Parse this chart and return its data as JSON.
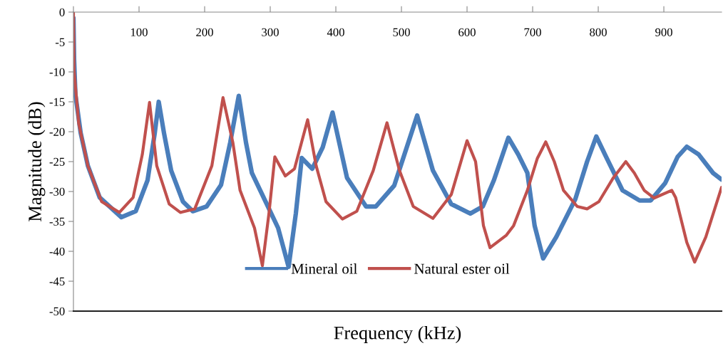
{
  "chart_data": {
    "type": "line",
    "xlabel": "Frequency (kHz)",
    "ylabel": "Magnitude (dB)",
    "xlim": [
      0,
      988
    ],
    "ylim": [
      -50,
      0
    ],
    "xticks": [
      {
        "value": 0,
        "label": null
      },
      100,
      200,
      300,
      400,
      500,
      600,
      700,
      800,
      900
    ],
    "yticks": [
      0,
      -5,
      -10,
      -15,
      -20,
      -25,
      -30,
      -35,
      -40,
      -45,
      -50
    ],
    "grid": false,
    "legend": "bottom",
    "line_style": "solid",
    "marker": "none",
    "series": [
      {
        "name": "Mineral oil",
        "color": "#4a7ebb",
        "x": [
          0,
          1,
          3,
          11,
          22,
          40,
          73,
          95,
          113,
          124,
          130,
          138,
          149,
          167,
          182,
          203,
          225,
          239,
          252,
          263,
          272,
          293,
          312,
          328,
          339,
          348,
          364,
          380,
          395,
          417,
          446,
          461,
          489,
          524,
          548,
          576,
          605,
          624,
          641,
          663,
          678,
          692,
          703,
          716,
          736,
          765,
          783,
          797,
          812,
          837,
          863,
          880,
          902,
          921,
          935,
          953,
          975,
          988
        ],
        "values": [
          -1,
          -7.9,
          -13.8,
          -20.2,
          -25.7,
          -31,
          -34.3,
          -33.3,
          -28.1,
          -20.2,
          -15,
          -20.2,
          -26.5,
          -31.7,
          -33.3,
          -32.5,
          -28.9,
          -21.8,
          -14,
          -21.8,
          -26.9,
          -31.7,
          -36.1,
          -42.6,
          -33.7,
          -24.4,
          -26.2,
          -22.6,
          -16.8,
          -27.7,
          -32.5,
          -32.5,
          -29,
          -17.3,
          -26.5,
          -32.1,
          -33.7,
          -32.5,
          -28.1,
          -21,
          -23.8,
          -26.9,
          -35.7,
          -41.2,
          -37.6,
          -31.3,
          -25,
          -20.8,
          -24.2,
          -29.8,
          -31.5,
          -31.5,
          -28.6,
          -24.2,
          -22.5,
          -23.8,
          -26.9,
          -28
        ]
      },
      {
        "name": "Natural ester oil",
        "color": "#c0504d",
        "x": [
          0,
          1,
          8,
          22,
          43,
          70,
          91,
          105,
          116,
          127,
          146,
          163,
          185,
          211,
          228,
          243,
          254,
          276,
          288,
          298,
          307,
          323,
          337,
          357,
          370,
          385,
          410,
          432,
          457,
          478,
          497,
          518,
          548,
          576,
          600,
          613,
          625,
          635,
          660,
          671,
          692,
          707,
          720,
          733,
          747,
          768,
          783,
          801,
          823,
          842,
          855,
          870,
          885,
          912,
          918,
          935,
          947,
          964,
          988
        ],
        "values": [
          0,
          -9.9,
          -18.6,
          -25.7,
          -31.7,
          -33.5,
          -31,
          -23.8,
          -15.1,
          -25.7,
          -32.1,
          -33.5,
          -32.9,
          -25.7,
          -14.3,
          -21.8,
          -29.8,
          -36.1,
          -42.4,
          -33.7,
          -24.2,
          -27.4,
          -26.2,
          -18,
          -25.7,
          -31.7,
          -34.6,
          -33.3,
          -26.5,
          -18.5,
          -26.5,
          -32.5,
          -34.5,
          -30.5,
          -21.5,
          -25,
          -35.7,
          -39.4,
          -37.3,
          -35.7,
          -29.8,
          -24.5,
          -21.7,
          -25,
          -29.8,
          -32.5,
          -32.9,
          -31.7,
          -27.7,
          -25,
          -26.9,
          -29.8,
          -31.1,
          -29.8,
          -31,
          -38.5,
          -41.8,
          -37.6,
          -29.3
        ]
      }
    ]
  }
}
